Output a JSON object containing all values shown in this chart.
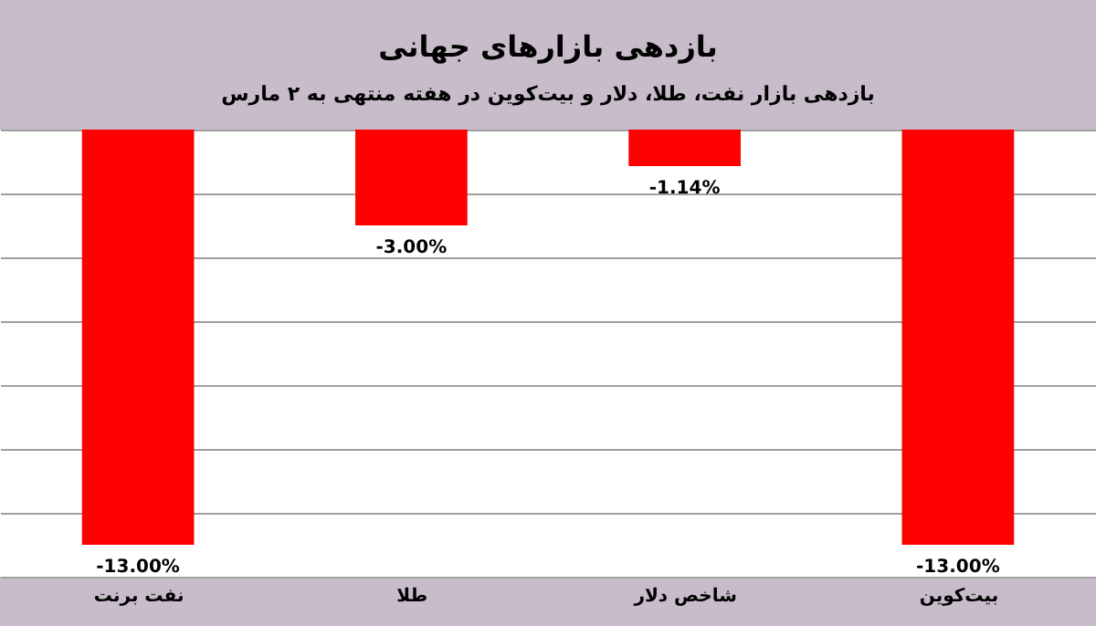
{
  "chart_data": {
    "type": "bar",
    "title": "بازدهی بازارهای جهانی",
    "subtitle": "بازدهی بازار نفت، طلا، دلار و بیت‌کوین در هفته منتهی به ۲ مارس",
    "categories": [
      "نفت برنت",
      "طلا",
      "شاخص دلار",
      "بیت‌کوین"
    ],
    "values": [
      -13,
      -3,
      -1.14,
      -13
    ],
    "value_labels": [
      "-13.00%",
      "-3.00%",
      "-1.14%",
      "-13.00%"
    ],
    "color": "#ff0000",
    "ylim": [
      -14,
      0
    ],
    "yticks": [
      {
        "value": 0,
        "label": null
      },
      {
        "value": -2,
        "label": null
      },
      {
        "value": -4,
        "label": null
      },
      {
        "value": -6,
        "label": null
      },
      {
        "value": -8,
        "label": null
      },
      {
        "value": -10,
        "label": null
      },
      {
        "value": -12,
        "label": null
      },
      {
        "value": -14,
        "label": null
      }
    ],
    "grid": "y",
    "tick_labels": "x"
  }
}
